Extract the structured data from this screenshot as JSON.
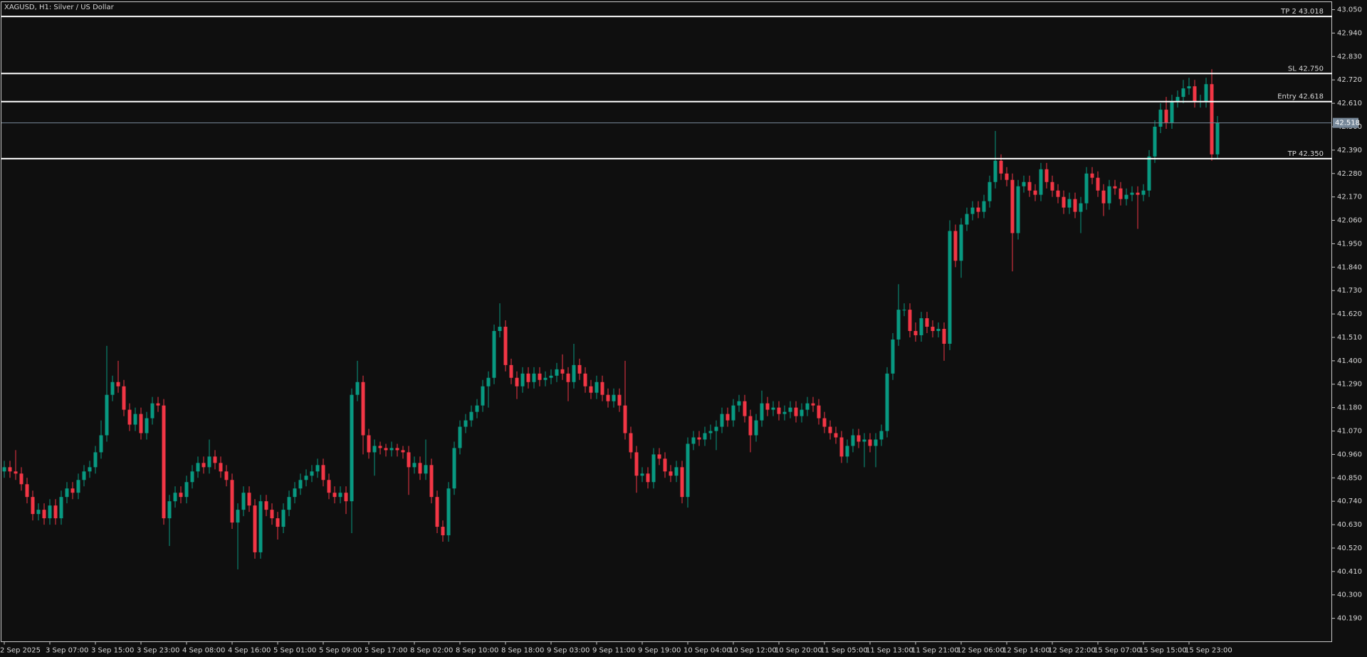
{
  "chart_data": {
    "type": "candlestick",
    "title": "XAGUSD, H1:  Silver / US Dollar",
    "categories": [
      "2 Sep 2025",
      null,
      null,
      null,
      null,
      null,
      null,
      null,
      "3 Sep 07:00",
      null,
      null,
      null,
      null,
      null,
      null,
      null,
      "3 Sep 15:00",
      null,
      null,
      null,
      null,
      null,
      null,
      null,
      "3 Sep 23:00",
      null,
      null,
      null,
      null,
      null,
      null,
      null,
      "4 Sep 08:00",
      null,
      null,
      null,
      null,
      null,
      null,
      null,
      "4 Sep 16:00",
      null,
      null,
      null,
      null,
      null,
      null,
      null,
      "5 Sep 01:00",
      null,
      null,
      null,
      null,
      null,
      null,
      null,
      "5 Sep 09:00",
      null,
      null,
      null,
      null,
      null,
      null,
      null,
      "5 Sep 17:00",
      null,
      null,
      null,
      null,
      null,
      null,
      null,
      "8 Sep 02:00",
      null,
      null,
      null,
      null,
      null,
      null,
      null,
      "8 Sep 10:00",
      null,
      null,
      null,
      null,
      null,
      null,
      null,
      "8 Sep 18:00",
      null,
      null,
      null,
      null,
      null,
      null,
      null,
      "9 Sep 03:00",
      null,
      null,
      null,
      null,
      null,
      null,
      null,
      "9 Sep 11:00",
      null,
      null,
      null,
      null,
      null,
      null,
      null,
      "9 Sep 19:00",
      null,
      null,
      null,
      null,
      null,
      null,
      null,
      "10 Sep 04:00",
      null,
      null,
      null,
      null,
      null,
      null,
      null,
      "10 Sep 12:00",
      null,
      null,
      null,
      null,
      null,
      null,
      null,
      "10 Sep 20:00",
      null,
      null,
      null,
      null,
      null,
      null,
      null,
      "11 Sep 05:00",
      null,
      null,
      null,
      null,
      null,
      null,
      null,
      "11 Sep 13:00",
      null,
      null,
      null,
      null,
      null,
      null,
      null,
      "11 Sep 21:00",
      null,
      null,
      null,
      null,
      null,
      null,
      null,
      "12 Sep 06:00",
      null,
      null,
      null,
      null,
      null,
      null,
      null,
      "12 Sep 14:00",
      null,
      null,
      null,
      null,
      null,
      null,
      null,
      "12 Sep 22:00",
      null,
      null,
      null,
      null,
      null,
      null,
      null,
      "15 Sep 07:00",
      null,
      null,
      null,
      null,
      null,
      null,
      null,
      "15 Sep 15:00",
      null,
      null,
      null,
      null,
      null,
      null,
      null,
      "15 Sep 23:00",
      null,
      null,
      null,
      null,
      null
    ],
    "open": [
      40.88,
      40.9,
      40.88,
      40.87,
      40.82,
      40.76,
      40.68,
      40.7,
      40.66,
      40.72,
      40.66,
      40.76,
      40.8,
      40.78,
      40.84,
      40.88,
      40.9,
      40.97,
      41.05,
      41.24,
      41.3,
      41.28,
      41.17,
      41.1,
      41.15,
      41.06,
      41.13,
      41.2,
      41.19,
      40.66,
      40.74,
      40.78,
      40.76,
      40.83,
      40.88,
      40.92,
      40.9,
      40.95,
      40.92,
      40.88,
      40.84,
      40.64,
      40.7,
      40.78,
      40.72,
      40.5,
      40.74,
      40.7,
      40.66,
      40.62,
      40.7,
      40.76,
      40.8,
      40.84,
      40.86,
      40.88,
      40.91,
      40.84,
      40.78,
      40.76,
      40.78,
      40.74,
      41.24,
      41.3,
      41.05,
      40.97,
      41.0,
      40.99,
      40.98,
      40.99,
      40.98,
      40.97,
      40.9,
      40.92,
      40.87,
      40.91,
      40.76,
      40.62,
      40.58,
      40.8,
      40.99,
      41.09,
      41.12,
      41.16,
      41.19,
      41.28,
      41.32,
      41.54,
      41.56,
      41.38,
      41.32,
      41.28,
      41.34,
      41.3,
      41.34,
      41.31,
      41.32,
      41.33,
      41.36,
      41.34,
      41.3,
      41.38,
      41.34,
      41.28,
      41.25,
      41.3,
      41.24,
      41.21,
      41.24,
      41.19,
      41.06,
      40.97,
      40.86,
      40.87,
      40.83,
      40.96,
      40.94,
      40.88,
      40.86,
      40.9,
      40.76,
      41.01,
      41.04,
      41.03,
      41.06,
      41.07,
      41.09,
      41.15,
      41.12,
      41.19,
      41.21,
      41.14,
      41.05,
      41.12,
      41.2,
      41.17,
      41.18,
      41.15,
      41.16,
      41.18,
      41.14,
      41.17,
      41.2,
      41.19,
      41.13,
      41.09,
      41.06,
      41.04,
      40.95,
      41.0,
      41.05,
      41.02,
      41.03,
      41.0,
      41.03,
      41.07,
      41.34,
      41.5,
      41.64,
      41.64,
      41.54,
      41.52,
      41.6,
      41.56,
      41.54,
      41.55,
      41.48,
      42.01,
      41.87,
      42.04,
      42.09,
      42.12,
      42.1,
      42.15,
      42.24,
      42.34,
      42.28,
      42.25,
      42.0,
      42.22,
      42.24,
      42.2,
      42.18,
      42.3,
      42.24,
      42.2,
      42.17,
      42.12,
      42.16,
      42.1,
      42.14,
      42.28,
      42.26,
      42.2,
      42.14,
      42.22,
      42.21,
      42.16,
      42.18,
      42.19,
      42.18,
      42.2,
      42.36,
      42.5,
      42.58,
      42.52,
      42.62,
      42.64,
      42.68,
      42.69,
      42.62,
      42.62,
      42.7,
      42.37
    ],
    "high": [
      40.93,
      40.93,
      40.98,
      40.9,
      40.85,
      40.79,
      40.73,
      40.73,
      40.75,
      40.75,
      40.79,
      40.83,
      40.83,
      40.87,
      40.91,
      40.93,
      41.0,
      41.12,
      41.47,
      41.33,
      41.4,
      41.31,
      41.2,
      41.18,
      41.18,
      41.16,
      41.23,
      41.23,
      41.22,
      40.77,
      40.81,
      40.81,
      40.86,
      40.91,
      40.95,
      40.95,
      41.03,
      40.98,
      40.95,
      40.91,
      40.87,
      40.73,
      40.81,
      40.81,
      40.75,
      40.77,
      40.77,
      40.73,
      40.69,
      40.73,
      40.79,
      40.83,
      40.87,
      40.89,
      40.91,
      40.94,
      40.94,
      40.87,
      40.81,
      40.81,
      40.81,
      41.27,
      41.4,
      41.33,
      41.08,
      41.03,
      41.02,
      41.01,
      41.02,
      41.01,
      41.0,
      41.0,
      40.95,
      40.95,
      41.03,
      40.94,
      40.79,
      40.65,
      40.83,
      41.02,
      41.12,
      41.15,
      41.19,
      41.22,
      41.31,
      41.35,
      41.57,
      41.67,
      41.59,
      41.41,
      41.35,
      41.37,
      41.37,
      41.37,
      41.37,
      41.35,
      41.36,
      41.39,
      41.43,
      41.37,
      41.48,
      41.41,
      41.37,
      41.31,
      41.33,
      41.33,
      41.27,
      41.27,
      41.27,
      41.4,
      41.09,
      41.0,
      40.9,
      40.9,
      40.99,
      40.99,
      40.97,
      40.91,
      40.93,
      40.93,
      41.04,
      41.07,
      41.07,
      41.09,
      41.1,
      41.12,
      41.18,
      41.18,
      41.22,
      41.24,
      41.24,
      41.17,
      41.15,
      41.26,
      41.23,
      41.21,
      41.21,
      41.19,
      41.21,
      41.21,
      41.2,
      41.23,
      41.23,
      41.22,
      41.16,
      41.12,
      41.09,
      41.07,
      41.03,
      41.08,
      41.08,
      41.06,
      41.06,
      41.06,
      41.1,
      41.37,
      41.53,
      41.76,
      41.67,
      41.67,
      41.58,
      41.63,
      41.63,
      41.59,
      41.58,
      41.58,
      42.06,
      42.04,
      42.07,
      42.12,
      42.15,
      42.15,
      42.18,
      42.27,
      42.48,
      42.37,
      42.31,
      42.28,
      42.25,
      42.27,
      42.27,
      42.23,
      42.33,
      42.33,
      42.27,
      42.23,
      42.2,
      42.19,
      42.19,
      42.17,
      42.31,
      42.31,
      42.29,
      42.23,
      42.25,
      42.25,
      42.24,
      42.21,
      42.22,
      42.22,
      42.23,
      42.39,
      42.53,
      42.61,
      42.64,
      42.65,
      42.67,
      42.72,
      42.73,
      42.72,
      42.65,
      42.73,
      42.77,
      42.55
    ],
    "low": [
      40.85,
      40.85,
      40.84,
      40.79,
      40.73,
      40.65,
      40.65,
      40.63,
      40.63,
      40.63,
      40.63,
      40.73,
      40.75,
      40.75,
      40.81,
      40.85,
      40.87,
      40.94,
      41.02,
      41.21,
      41.25,
      41.14,
      41.07,
      41.07,
      41.03,
      41.03,
      41.1,
      41.16,
      40.63,
      40.53,
      40.71,
      40.73,
      40.73,
      40.8,
      40.85,
      40.87,
      40.87,
      40.89,
      40.85,
      40.81,
      40.61,
      40.42,
      40.67,
      40.69,
      40.47,
      40.47,
      40.67,
      40.63,
      40.56,
      40.59,
      40.67,
      40.73,
      40.77,
      40.81,
      40.83,
      40.85,
      40.81,
      40.75,
      40.73,
      40.73,
      40.68,
      40.59,
      41.21,
      40.96,
      40.94,
      40.86,
      40.96,
      40.95,
      40.95,
      40.95,
      40.94,
      40.77,
      40.87,
      40.84,
      40.84,
      40.73,
      40.59,
      40.55,
      40.55,
      40.77,
      40.96,
      41.06,
      41.09,
      41.13,
      41.16,
      41.18,
      41.29,
      41.51,
      41.35,
      41.29,
      41.22,
      41.25,
      41.27,
      41.27,
      41.28,
      41.28,
      41.29,
      41.3,
      41.31,
      41.21,
      41.27,
      41.31,
      41.25,
      41.22,
      41.22,
      41.21,
      41.18,
      41.18,
      41.16,
      41.03,
      40.94,
      40.78,
      40.83,
      40.8,
      40.8,
      40.91,
      40.85,
      40.83,
      40.83,
      40.73,
      40.71,
      40.98,
      41.0,
      41.0,
      41.03,
      40.98,
      41.06,
      41.09,
      41.09,
      41.16,
      41.11,
      40.97,
      41.02,
      41.09,
      41.14,
      41.14,
      41.12,
      41.12,
      41.13,
      41.11,
      41.11,
      41.14,
      41.16,
      41.1,
      41.06,
      41.03,
      41.01,
      40.92,
      40.92,
      40.97,
      40.99,
      40.9,
      40.97,
      40.9,
      41.0,
      41.04,
      41.31,
      41.47,
      41.61,
      41.51,
      41.49,
      41.49,
      41.53,
      41.51,
      41.51,
      41.4,
      41.45,
      41.84,
      41.79,
      42.01,
      42.06,
      42.07,
      42.07,
      42.12,
      42.21,
      42.25,
      42.22,
      41.82,
      41.97,
      42.19,
      42.17,
      42.15,
      42.15,
      42.21,
      42.17,
      42.14,
      42.09,
      42.09,
      42.07,
      42.0,
      42.11,
      42.23,
      42.17,
      42.08,
      42.11,
      42.18,
      42.13,
      42.13,
      42.15,
      42.02,
      42.15,
      42.17,
      42.33,
      42.47,
      42.49,
      42.49,
      42.59,
      42.61,
      42.65,
      42.59,
      42.59,
      42.59,
      42.34,
      42.35
    ],
    "close": [
      40.9,
      40.88,
      40.87,
      40.82,
      40.76,
      40.68,
      40.7,
      40.66,
      40.72,
      40.66,
      40.76,
      40.8,
      40.78,
      40.84,
      40.88,
      40.9,
      40.97,
      41.05,
      41.24,
      41.3,
      41.28,
      41.17,
      41.1,
      41.15,
      41.06,
      41.13,
      41.2,
      41.19,
      40.66,
      40.74,
      40.78,
      40.76,
      40.83,
      40.88,
      40.92,
      40.9,
      40.95,
      40.92,
      40.88,
      40.84,
      40.64,
      40.7,
      40.78,
      40.72,
      40.5,
      40.74,
      40.7,
      40.66,
      40.62,
      40.7,
      40.76,
      40.8,
      40.84,
      40.86,
      40.88,
      40.91,
      40.84,
      40.78,
      40.76,
      40.78,
      40.74,
      41.24,
      41.3,
      41.05,
      40.97,
      41.0,
      40.99,
      40.98,
      40.99,
      40.98,
      40.97,
      40.9,
      40.92,
      40.87,
      40.91,
      40.76,
      40.62,
      40.58,
      40.8,
      40.99,
      41.09,
      41.12,
      41.16,
      41.19,
      41.28,
      41.32,
      41.54,
      41.56,
      41.38,
      41.32,
      41.28,
      41.34,
      41.3,
      41.34,
      41.31,
      41.32,
      41.33,
      41.36,
      41.34,
      41.3,
      41.38,
      41.34,
      41.28,
      41.25,
      41.3,
      41.24,
      41.21,
      41.24,
      41.19,
      41.06,
      40.97,
      40.86,
      40.87,
      40.83,
      40.96,
      40.94,
      40.88,
      40.86,
      40.9,
      40.76,
      41.01,
      41.04,
      41.03,
      41.06,
      41.07,
      41.09,
      41.15,
      41.12,
      41.19,
      41.21,
      41.14,
      41.05,
      41.12,
      41.2,
      41.17,
      41.18,
      41.15,
      41.16,
      41.18,
      41.14,
      41.17,
      41.2,
      41.19,
      41.13,
      41.09,
      41.06,
      41.04,
      40.95,
      41.0,
      41.05,
      41.02,
      41.03,
      41.0,
      41.03,
      41.07,
      41.34,
      41.5,
      41.64,
      41.64,
      41.54,
      41.52,
      41.6,
      41.56,
      41.54,
      41.55,
      41.48,
      42.01,
      41.87,
      42.04,
      42.09,
      42.12,
      42.1,
      42.15,
      42.24,
      42.34,
      42.28,
      42.25,
      42.0,
      42.22,
      42.24,
      42.2,
      42.18,
      42.3,
      42.24,
      42.2,
      42.17,
      42.12,
      42.16,
      42.1,
      42.14,
      42.28,
      42.26,
      42.2,
      42.14,
      42.22,
      42.21,
      42.16,
      42.18,
      42.19,
      42.18,
      42.2,
      42.36,
      42.5,
      42.58,
      42.52,
      42.62,
      42.64,
      42.68,
      42.69,
      42.62,
      42.62,
      42.7,
      42.37,
      42.518
    ],
    "up_color": "#089981",
    "down_color": "#f23645",
    "ylim": [
      40.08,
      43.087
    ],
    "yticks": [
      {
        "value": 43.05,
        "label": "43.050"
      },
      {
        "value": 42.94,
        "label": "42.940"
      },
      {
        "value": 42.83,
        "label": "42.830"
      },
      {
        "value": 42.72,
        "label": "42.720"
      },
      {
        "value": 42.61,
        "label": "42.610"
      },
      {
        "value": 42.5,
        "label": "42.500"
      },
      {
        "value": 42.39,
        "label": "42.390"
      },
      {
        "value": 42.28,
        "label": "42.280"
      },
      {
        "value": 42.17,
        "label": "42.170"
      },
      {
        "value": 42.06,
        "label": "42.060"
      },
      {
        "value": 41.95,
        "label": "41.950"
      },
      {
        "value": 41.84,
        "label": "41.840"
      },
      {
        "value": 41.73,
        "label": "41.730"
      },
      {
        "value": 41.62,
        "label": "41.620"
      },
      {
        "value": 41.51,
        "label": "41.510"
      },
      {
        "value": 41.4,
        "label": "41.400"
      },
      {
        "value": 41.29,
        "label": "41.290"
      },
      {
        "value": 41.18,
        "label": "41.180"
      },
      {
        "value": 41.07,
        "label": "41.070"
      },
      {
        "value": 40.96,
        "label": "40.960"
      },
      {
        "value": 40.85,
        "label": "40.850"
      },
      {
        "value": 40.74,
        "label": "40.740"
      },
      {
        "value": 40.63,
        "label": "40.630"
      },
      {
        "value": 40.52,
        "label": "40.520"
      },
      {
        "value": 40.41,
        "label": "40.410"
      },
      {
        "value": 40.3,
        "label": "40.300"
      },
      {
        "value": 40.19,
        "label": "40.190"
      }
    ],
    "levels": [
      {
        "text": "TP 2 43.018",
        "value": 43.018
      },
      {
        "text": "SL 42.750",
        "value": 42.75
      },
      {
        "text": "Entry 42.618",
        "value": 42.618
      },
      {
        "text": "TP 42.350",
        "value": 42.35
      }
    ],
    "last_price": 42.518
  }
}
